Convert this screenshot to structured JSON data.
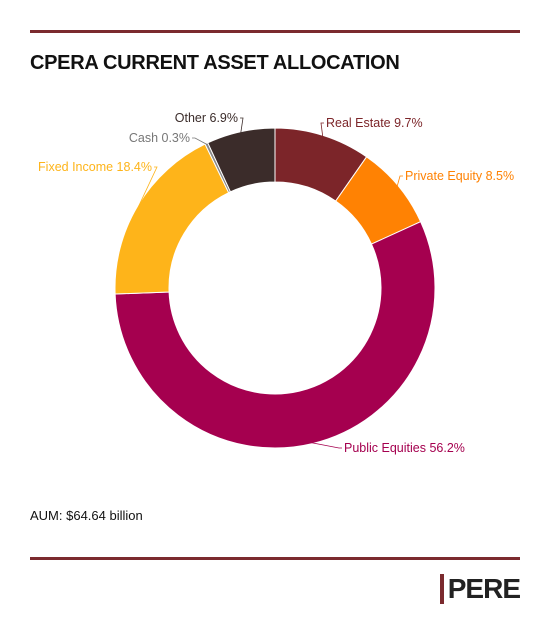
{
  "title": "CPERA CURRENT ASSET ALLOCATION",
  "note": "AUM: $64.64 billion",
  "logo": "PERE",
  "colors": {
    "rule": "#7b2a2e",
    "title": "#111111"
  },
  "chart_data": {
    "type": "pie",
    "donut": true,
    "title": "CPERA CURRENT ASSET ALLOCATION",
    "slices": [
      {
        "name": "Real Estate",
        "value": 9.7,
        "label": "Real Estate 9.7%",
        "color": "#7c2529",
        "label_color": "#7c2529"
      },
      {
        "name": "Private Equity",
        "value": 8.5,
        "label": "Private Equity 8.5%",
        "color": "#ff8203",
        "label_color": "#ff8203"
      },
      {
        "name": "Public Equities",
        "value": 56.2,
        "label": "Public Equities 56.2%",
        "color": "#a5004f",
        "label_color": "#a5004f"
      },
      {
        "name": "Fixed Income",
        "value": 18.4,
        "label": "Fixed Income 18.4%",
        "color": "#feb41a",
        "label_color": "#feb41a"
      },
      {
        "name": "Cash",
        "value": 0.3,
        "label": "Cash 0.3%",
        "color": "#888888",
        "label_color": "#777777"
      },
      {
        "name": "Other",
        "value": 6.9,
        "label": "Other 6.9%",
        "color": "#3b2c2a",
        "label_color": "#3b2c2a"
      }
    ]
  }
}
